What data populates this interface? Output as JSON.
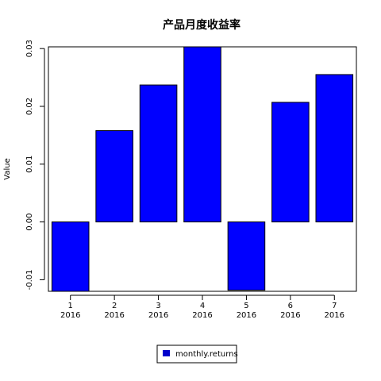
{
  "chart_data": {
    "type": "bar",
    "title": "产品月度收益率",
    "xlabel": "",
    "ylabel": "Value",
    "categories": [
      "1\n2016",
      "2\n2016",
      "3\n2016",
      "4\n2016",
      "5\n2016",
      "6\n2016",
      "7\n2016"
    ],
    "category_lines": [
      [
        "1",
        "2016"
      ],
      [
        "2",
        "2016"
      ],
      [
        "3",
        "2016"
      ],
      [
        "4",
        "2016"
      ],
      [
        "5",
        "2016"
      ],
      [
        "6",
        "2016"
      ],
      [
        "7",
        "2016"
      ]
    ],
    "series": [
      {
        "name": "monthly.returns",
        "values": [
          -0.0125,
          0.0158,
          0.0237,
          0.0304,
          -0.0118,
          0.0207,
          0.0255
        ]
      }
    ],
    "ylim": [
      -0.012,
      0.0303
    ],
    "yticks": [
      -0.01,
      0.0,
      0.01,
      0.02,
      0.03
    ],
    "ytick_labels": [
      "-0.01",
      "0.00",
      "0.01",
      "0.02",
      "0.03"
    ],
    "grid": false,
    "legend_position": "bottom-center",
    "bar_color": "#0000ff",
    "legend_swatch_color": "#0000cc"
  }
}
